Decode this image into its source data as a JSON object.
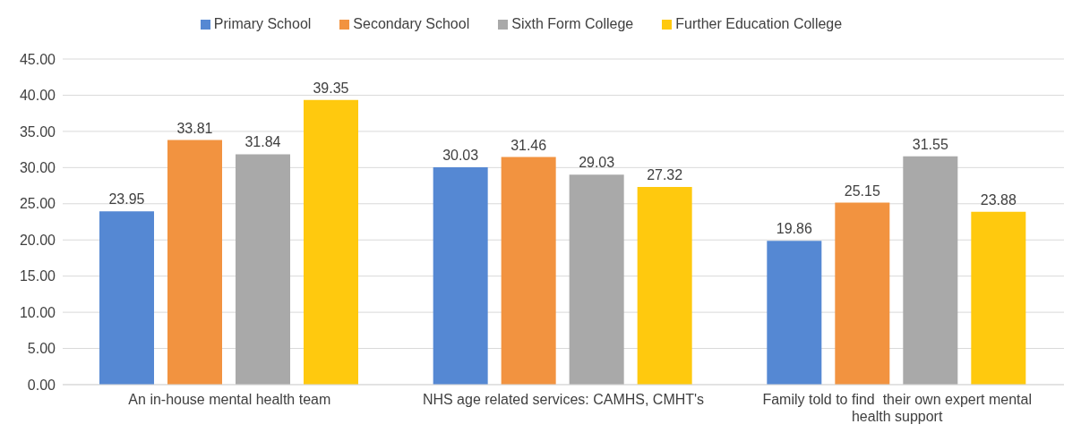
{
  "chart_data": {
    "type": "bar",
    "categories": [
      "An in-house mental health team",
      "NHS age related services: CAMHS, CMHT's",
      "Family told to find  their own expert mental health support"
    ],
    "series": [
      {
        "name": "Primary School",
        "color": "#5588d3",
        "values": [
          23.95,
          30.03,
          19.86
        ]
      },
      {
        "name": "Secondary School",
        "color": "#f29340",
        "values": [
          33.81,
          31.46,
          25.15
        ]
      },
      {
        "name": "Sixth Form College",
        "color": "#a9a9a9",
        "values": [
          31.84,
          29.03,
          31.55
        ]
      },
      {
        "name": "Further Education College",
        "color": "#ffc90e",
        "values": [
          39.35,
          27.32,
          23.88
        ]
      }
    ],
    "ylim": [
      0,
      45
    ],
    "yticks": [
      {
        "value": 0,
        "label": "0.00"
      },
      {
        "value": 5,
        "label": "5.00"
      },
      {
        "value": 10,
        "label": "10.00"
      },
      {
        "value": 15,
        "label": "15.00"
      },
      {
        "value": 20,
        "label": "20.00"
      },
      {
        "value": 25,
        "label": "25.00"
      },
      {
        "value": 30,
        "label": "30.00"
      },
      {
        "value": 35,
        "label": "35.00"
      },
      {
        "value": 40,
        "label": "40.00"
      },
      {
        "value": 45,
        "label": "45.00"
      }
    ],
    "grid": "y",
    "legend": "top",
    "data_labels": true
  }
}
